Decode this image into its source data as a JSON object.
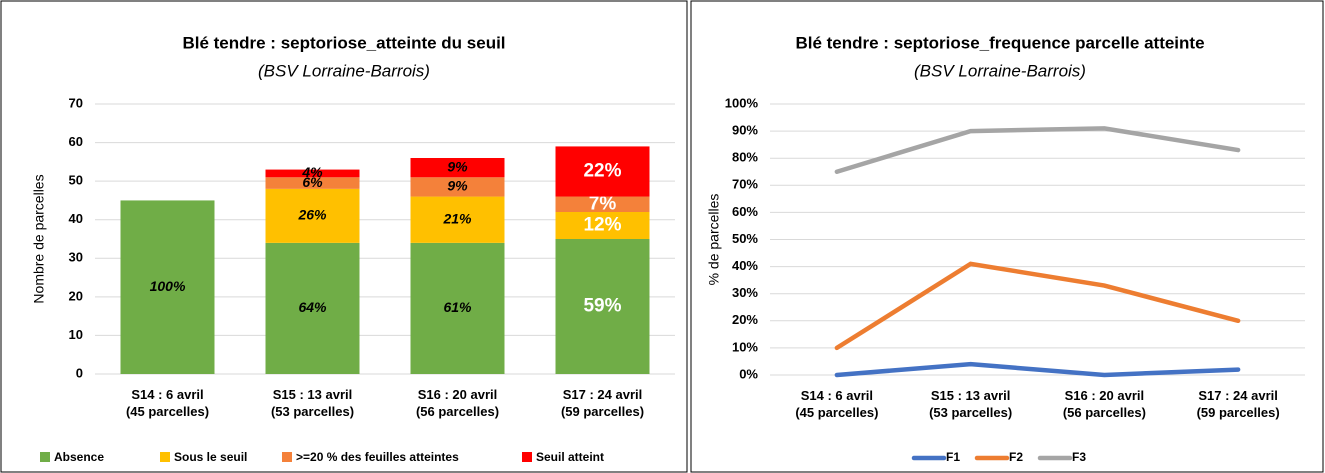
{
  "chart_data": [
    {
      "type": "stacked-bar",
      "title": "Blé tendre : septoriose_atteinte du seuil",
      "subtitle": "(BSV Lorraine-Barrois)",
      "y_label": "Nombre de parcelles",
      "categories": [
        "S14 : 6 avril\n(45 parcelles)",
        "S15 : 13 avril\n(53 parcelles)",
        "S16 : 20 avril\n(56 parcelles)",
        "S17 : 24 avril\n(59 parcelles)"
      ],
      "series": [
        {
          "name": "Absence",
          "color": "#70ad47",
          "values": [
            45,
            34,
            34,
            35
          ],
          "value_labels": [
            "100%",
            "64%",
            "61%",
            "59%"
          ]
        },
        {
          "name": "Sous le seuil",
          "color": "#ffc000",
          "values": [
            null,
            14,
            12,
            7
          ],
          "value_labels": [
            null,
            "26%",
            "21%",
            "12%"
          ]
        },
        {
          "name": ">=20 % des feuilles atteintes",
          "color": "#f4813a",
          "values": [
            null,
            3,
            5,
            4
          ],
          "value_labels": [
            null,
            "6%",
            "9%",
            "7%"
          ]
        },
        {
          "name": "Seuil atteint",
          "color": "#ff0000",
          "values": [
            null,
            2,
            5,
            13
          ],
          "value_labels": [
            null,
            "4%",
            "9%",
            "22%"
          ]
        }
      ],
      "ylim": [
        0,
        70
      ],
      "yticks": [
        0,
        10,
        20,
        30,
        40,
        50,
        60,
        70
      ],
      "grid": true,
      "legend": "bottom"
    },
    {
      "type": "line",
      "title": "Blé tendre : septoriose_frequence parcelle atteinte",
      "subtitle": "(BSV Lorraine-Barrois)",
      "y_label": "% de parcelles",
      "categories": [
        "S14 : 6 avril\n(45 parcelles)",
        "S15 : 13 avril\n(53 parcelles)",
        "S16 : 20 avril\n(56 parcelles)",
        "S17 : 24 avril\n(59 parcelles)"
      ],
      "series": [
        {
          "name": "F1",
          "color": "#4472c4",
          "values": [
            0,
            4,
            0,
            2
          ]
        },
        {
          "name": "F2",
          "color": "#ed7d31",
          "values": [
            10,
            41,
            33,
            20
          ]
        },
        {
          "name": "F3",
          "color": "#a5a5a5",
          "values": [
            75,
            90,
            91,
            83
          ]
        }
      ],
      "ylim": [
        0,
        100
      ],
      "yticks": [
        {
          "value": 0,
          "label": "0%"
        },
        {
          "value": 10,
          "label": "10%"
        },
        {
          "value": 20,
          "label": "20%"
        },
        {
          "value": 30,
          "label": "30%"
        },
        {
          "value": 40,
          "label": "40%"
        },
        {
          "value": 50,
          "label": "50%"
        },
        {
          "value": 60,
          "label": "60%"
        },
        {
          "value": 70,
          "label": "70%"
        },
        {
          "value": 80,
          "label": "80%"
        },
        {
          "value": 90,
          "label": "90%"
        },
        {
          "value": 100,
          "label": "100%"
        }
      ],
      "grid": true,
      "legend": "bottom"
    }
  ]
}
